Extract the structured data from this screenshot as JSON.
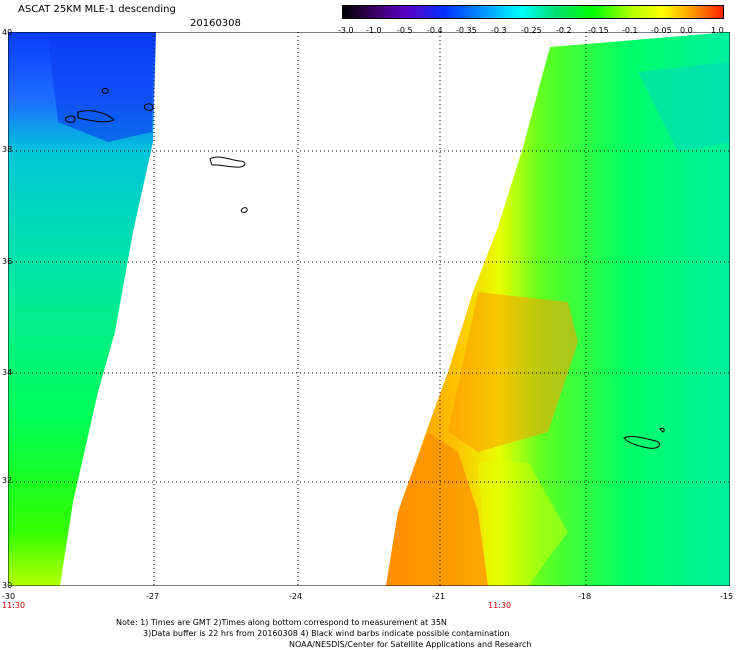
{
  "header": {
    "title": "ASCAT 25KM MLE-1 descending",
    "date": "20160308"
  },
  "colorbar": {
    "ticks": [
      "-3.0",
      "-1.0",
      "-0.5",
      "-0.4",
      "-0.35",
      "-0.3",
      "-0.25",
      "-0.2",
      "-0.15",
      "-0.1",
      "-0.05",
      "0.0",
      "1.0"
    ]
  },
  "map": {
    "y_labels": [
      "40",
      "38",
      "36",
      "34",
      "32",
      "30"
    ],
    "x_labels": [
      "-30",
      "-27",
      "-24",
      "-21",
      "-18",
      "-15"
    ],
    "time_labels": [
      "11:30",
      "11:30"
    ]
  },
  "notes": {
    "line1": "Note: 1) Times are GMT 2)Times along bottom correspond to measurement at 35N",
    "line2": "3)Data buffer is 22 hrs from 20160308 4) Black wind barbs indicate possible contamination",
    "line3": "NOAA/NESDIS/Center for Satellite Applications and Research"
  },
  "colors": {
    "low": "#0033ff",
    "mid": "#00ff66",
    "high": "#ff9a00"
  }
}
